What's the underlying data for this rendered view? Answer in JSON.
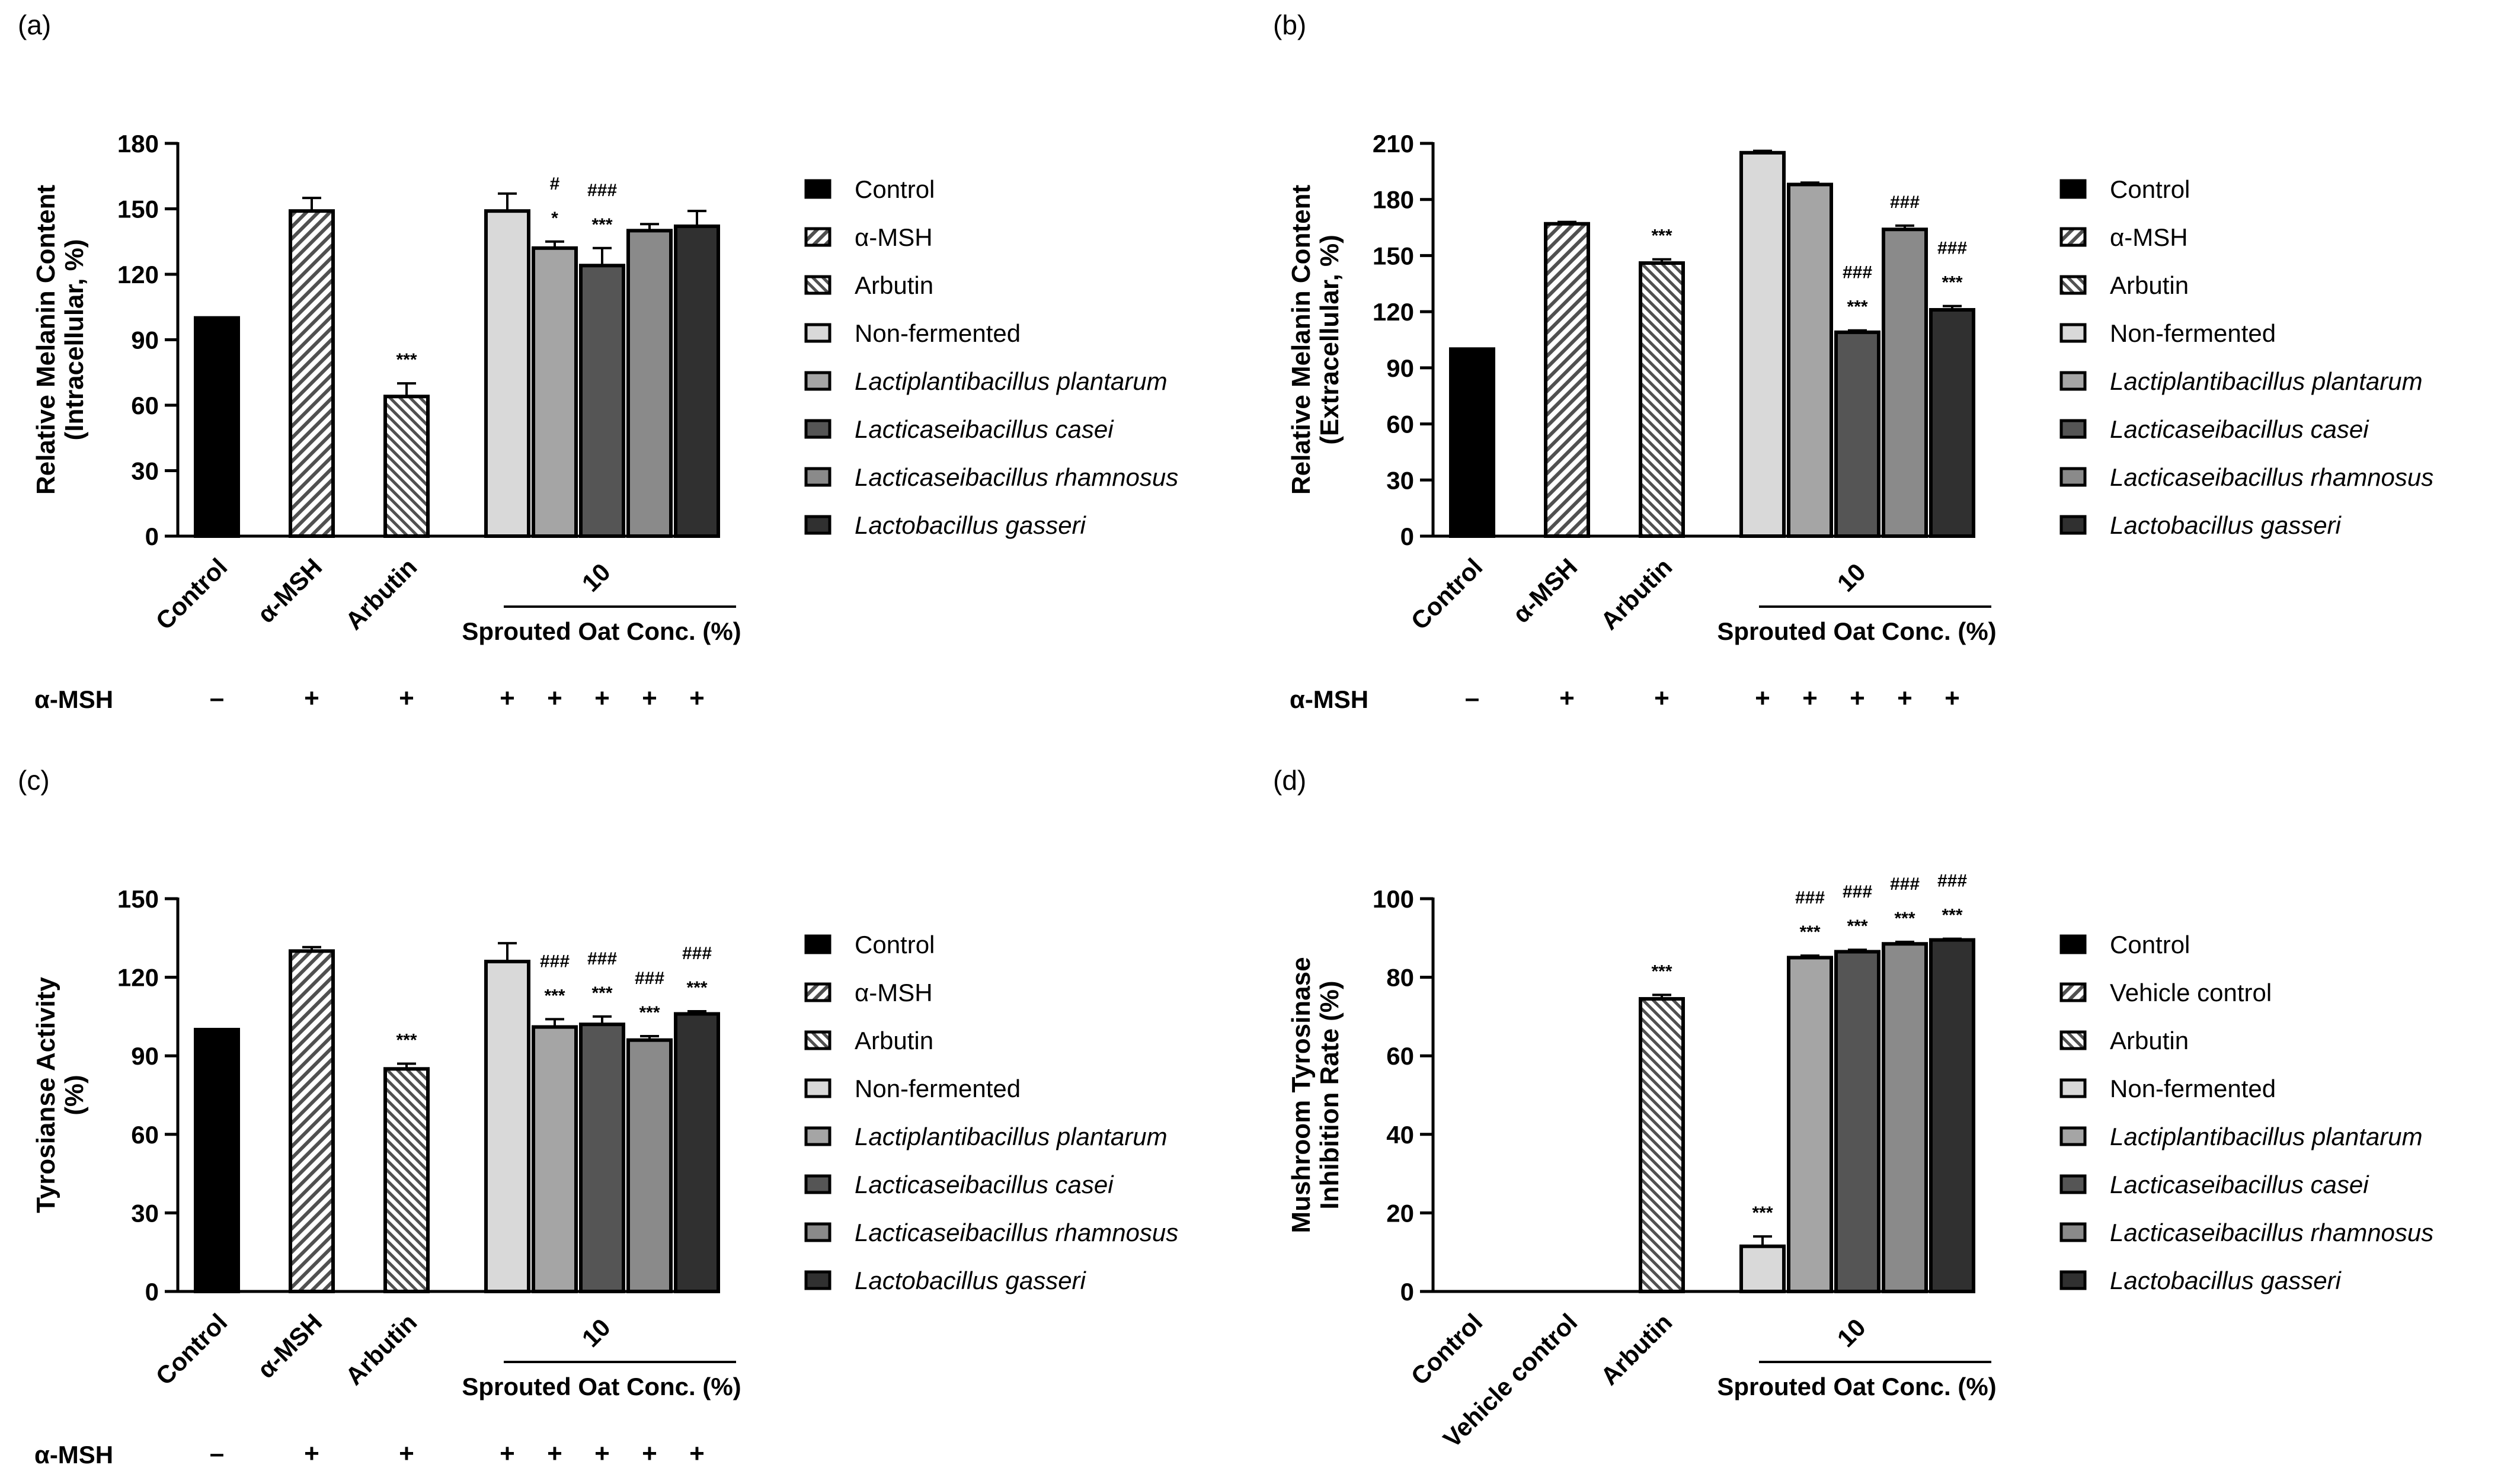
{
  "colors": {
    "control": "#000000",
    "msh": "#5a5a5a",
    "arbutin": "#6e6e6e",
    "non_fermented": "#d9d9d9",
    "plantarum": "#a5a5a5",
    "casei": "#555555",
    "rhamnosus": "#8a8a8a",
    "gasseri": "#303030"
  },
  "chart_data": [
    {
      "panel_label": "(a)",
      "type": "bar",
      "ylabel_line1": "Relative Melanin Content",
      "ylabel_line2": "(Intracellular, %)",
      "ylim": [
        0,
        180
      ],
      "yticks": [
        "0",
        "30",
        "60",
        "90",
        "120",
        "150",
        "180"
      ],
      "categories": [
        "Control",
        "α-MSH",
        "Arbutin"
      ],
      "group_label": "10",
      "group_axis_label": "Sprouted Oat Conc. (%)",
      "msh_row_label": "α-MSH",
      "msh_signs": [
        "–",
        "+",
        "+",
        "+",
        "+",
        "+",
        "+",
        "+"
      ],
      "bars": [
        {
          "series": "Control",
          "value": 100,
          "error": 0,
          "sig": []
        },
        {
          "series": "α-MSH",
          "value": 149,
          "error": 6,
          "sig": []
        },
        {
          "series": "Arbutin",
          "value": 64,
          "error": 6,
          "sig": [
            "***"
          ]
        },
        {
          "series": "Non-fermented",
          "value": 149,
          "error": 8,
          "sig": []
        },
        {
          "series": "Lactiplantibacillus plantarum",
          "value": 132,
          "error": 3,
          "sig": [
            "*",
            "#"
          ]
        },
        {
          "series": "Lacticaseibacillus casei",
          "value": 124,
          "error": 8,
          "sig": [
            "***",
            "###"
          ]
        },
        {
          "series": "Lacticaseibacillus rhamnosus",
          "value": 140,
          "error": 3,
          "sig": []
        },
        {
          "series": "Lactobacillus gasseri",
          "value": 142,
          "error": 7,
          "sig": []
        }
      ],
      "legend": [
        "Control",
        "α-MSH",
        "Arbutin",
        "Non-fermented",
        "Lactiplantibacillus plantarum",
        "Lacticaseibacillus casei",
        "Lacticaseibacillus rhamnosus",
        "Lactobacillus gasseri"
      ]
    },
    {
      "panel_label": "(b)",
      "type": "bar",
      "ylabel_line1": "Relative Melanin Content",
      "ylabel_line2": "(Extracellular, %)",
      "ylim": [
        0,
        210
      ],
      "yticks": [
        "0",
        "30",
        "60",
        "90",
        "120",
        "150",
        "180",
        "210"
      ],
      "categories": [
        "Control",
        "α-MSH",
        "Arbutin"
      ],
      "group_label": "10",
      "group_axis_label": "Sprouted Oat Conc. (%)",
      "msh_row_label": "α-MSH",
      "msh_signs": [
        "–",
        "+",
        "+",
        "+",
        "+",
        "+",
        "+",
        "+"
      ],
      "bars": [
        {
          "series": "Control",
          "value": 100,
          "error": 0,
          "sig": []
        },
        {
          "series": "α-MSH",
          "value": 167,
          "error": 1,
          "sig": []
        },
        {
          "series": "Arbutin",
          "value": 146,
          "error": 2,
          "sig": [
            "***"
          ]
        },
        {
          "series": "Non-fermented",
          "value": 205,
          "error": 1,
          "sig": []
        },
        {
          "series": "Lactiplantibacillus plantarum",
          "value": 188,
          "error": 1,
          "sig": []
        },
        {
          "series": "Lacticaseibacillus casei",
          "value": 109,
          "error": 1,
          "sig": [
            "***",
            "###"
          ]
        },
        {
          "series": "Lacticaseibacillus rhamnosus",
          "value": 164,
          "error": 2,
          "sig": [
            "###"
          ]
        },
        {
          "series": "Lactobacillus gasseri",
          "value": 121,
          "error": 2,
          "sig": [
            "***",
            "###"
          ]
        }
      ],
      "legend": [
        "Control",
        "α-MSH",
        "Arbutin",
        "Non-fermented",
        "Lactiplantibacillus plantarum",
        "Lacticaseibacillus casei",
        "Lacticaseibacillus rhamnosus",
        "Lactobacillus gasseri"
      ]
    },
    {
      "panel_label": "(c)",
      "type": "bar",
      "ylabel_line1": "Tyrosianse Activity",
      "ylabel_line2": "(%)",
      "ylim": [
        0,
        150
      ],
      "yticks": [
        "0",
        "30",
        "60",
        "90",
        "120",
        "150"
      ],
      "categories": [
        "Control",
        "α-MSH",
        "Arbutin"
      ],
      "group_label": "10",
      "group_axis_label": "Sprouted Oat Conc. (%)",
      "msh_row_label": "α-MSH",
      "msh_signs": [
        "–",
        "+",
        "+",
        "+",
        "+",
        "+",
        "+",
        "+"
      ],
      "bars": [
        {
          "series": "Control",
          "value": 100,
          "error": 0,
          "sig": []
        },
        {
          "series": "α-MSH",
          "value": 130,
          "error": 1.5,
          "sig": []
        },
        {
          "series": "Arbutin",
          "value": 85,
          "error": 2,
          "sig": [
            "***"
          ]
        },
        {
          "series": "Non-fermented",
          "value": 126,
          "error": 7,
          "sig": []
        },
        {
          "series": "Lactiplantibacillus plantarum",
          "value": 101,
          "error": 3,
          "sig": [
            "***",
            "###"
          ]
        },
        {
          "series": "Lacticaseibacillus casei",
          "value": 102,
          "error": 3,
          "sig": [
            "***",
            "###"
          ]
        },
        {
          "series": "Lacticaseibacillus rhamnosus",
          "value": 96,
          "error": 1.5,
          "sig": [
            "***",
            "###"
          ]
        },
        {
          "series": "Lactobacillus gasseri",
          "value": 106,
          "error": 1,
          "sig": [
            "***",
            "###"
          ]
        }
      ],
      "legend": [
        "Control",
        "α-MSH",
        "Arbutin",
        "Non-fermented",
        "Lactiplantibacillus plantarum",
        "Lacticaseibacillus casei",
        "Lacticaseibacillus rhamnosus",
        "Lactobacillus gasseri"
      ]
    },
    {
      "panel_label": "(d)",
      "type": "bar",
      "ylabel_line1": "Mushroom Tyrosinase",
      "ylabel_line2": "Inhibition Rate (%)",
      "ylim": [
        0,
        100
      ],
      "yticks": [
        "0",
        "20",
        "40",
        "60",
        "80",
        "100"
      ],
      "categories": [
        "Control",
        "Vehicle control",
        "Arbutin"
      ],
      "group_label": "10",
      "group_axis_label": "Sprouted Oat Conc. (%)",
      "msh_row_label": "",
      "msh_signs": [],
      "bars": [
        {
          "series": "Control",
          "value": 0,
          "error": 0,
          "sig": []
        },
        {
          "series": "Vehicle control",
          "value": 0,
          "error": 0,
          "sig": []
        },
        {
          "series": "Arbutin",
          "value": 74.5,
          "error": 1,
          "sig": [
            "***"
          ]
        },
        {
          "series": "Non-fermented",
          "value": 11.5,
          "error": 2.5,
          "sig": [
            "***"
          ]
        },
        {
          "series": "Lactiplantibacillus plantarum",
          "value": 85,
          "error": 0.5,
          "sig": [
            "***",
            "###"
          ]
        },
        {
          "series": "Lacticaseibacillus casei",
          "value": 86.5,
          "error": 0.5,
          "sig": [
            "***",
            "###"
          ]
        },
        {
          "series": "Lacticaseibacillus rhamnosus",
          "value": 88.5,
          "error": 0.5,
          "sig": [
            "***",
            "###"
          ]
        },
        {
          "series": "Lactobacillus gasseri",
          "value": 89.5,
          "error": 0.3,
          "sig": [
            "***",
            "###"
          ]
        }
      ],
      "legend": [
        "Control",
        "Vehicle control",
        "Arbutin",
        "Non-fermented",
        "Lactiplantibacillus plantarum",
        "Lacticaseibacillus casei",
        "Lacticaseibacillus rhamnosus",
        "Lactobacillus gasseri"
      ]
    }
  ]
}
